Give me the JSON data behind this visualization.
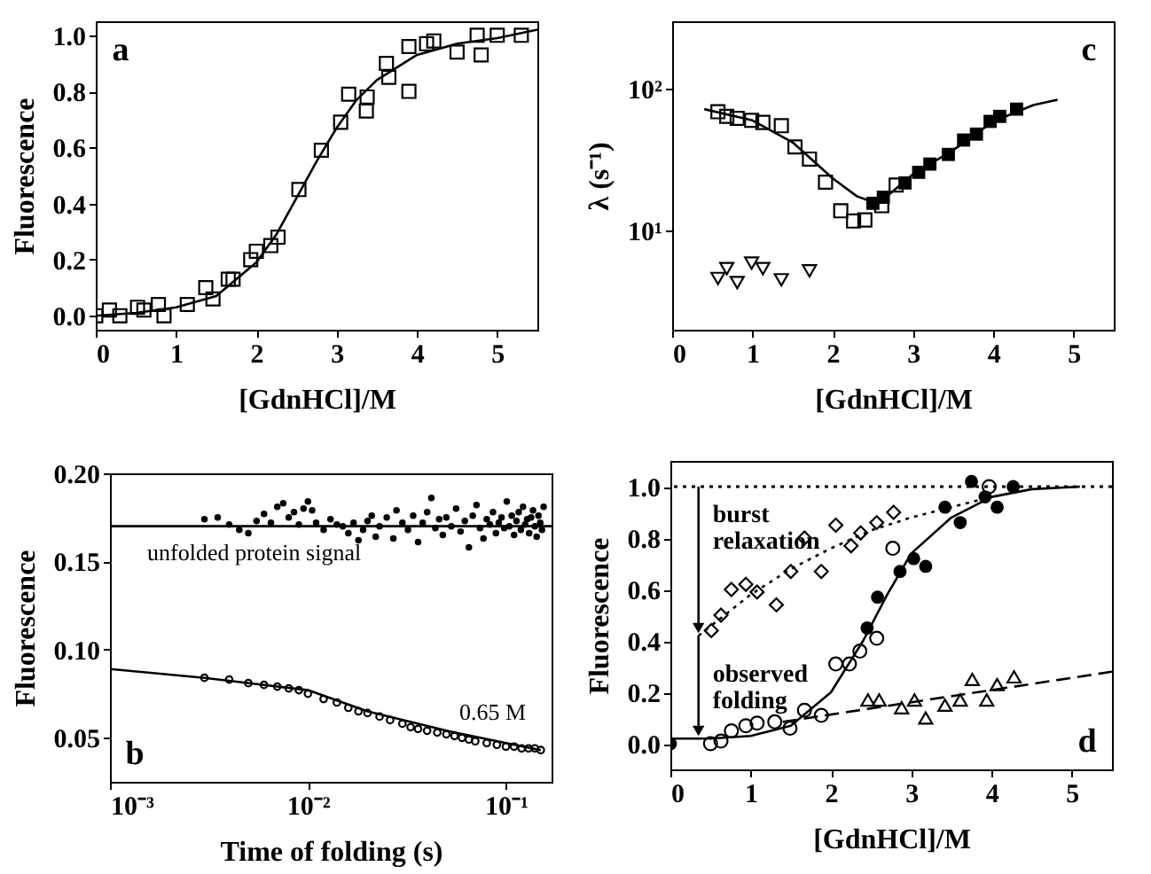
{
  "chart_data": [
    {
      "type": "scatter",
      "xlabel": "[GdnHCl]/M",
      "ylabel": "Fluorescence",
      "xlim": [
        0,
        5.5
      ],
      "ylim": [
        -0.05,
        1.05
      ],
      "xticks": [
        0,
        1,
        2,
        3,
        4,
        5
      ],
      "yticks": [
        {
          "value": 0,
          "label": "0.0"
        },
        {
          "value": 0.2,
          "label": "0.2"
        },
        {
          "value": 0.4,
          "label": "0.4"
        },
        {
          "value": 0.6,
          "label": "0.6"
        },
        {
          "value": 0.8,
          "label": "0.8"
        },
        {
          "value": 1,
          "label": "1.0"
        }
      ],
      "annotations": [
        "a"
      ],
      "series": [
        {
          "type": "scatter",
          "marker": "square",
          "color": "#000000",
          "x": [
            0,
            0.17,
            0.3,
            0.52,
            0.6,
            0.78,
            0.85,
            1.14,
            1.37,
            1.46,
            1.65,
            1.71,
            1.93,
            2.0,
            2.18,
            2.27,
            2.53,
            2.81,
            3.05,
            3.15,
            3.37,
            3.38,
            3.62,
            3.65,
            3.9,
            3.9,
            4.12,
            4.21,
            4.5,
            4.75,
            4.8,
            5.0,
            5.3
          ],
          "values": [
            0,
            0.02,
            0,
            0.03,
            0.02,
            0.04,
            0.0,
            0.04,
            0.1,
            0.06,
            0.13,
            0.13,
            0.2,
            0.23,
            0.25,
            0.28,
            0.45,
            0.59,
            0.69,
            0.79,
            0.73,
            0.78,
            0.9,
            0.85,
            0.8,
            0.96,
            0.97,
            0.98,
            0.94,
            1.0,
            0.93,
            1.0,
            1.0
          ]
        },
        {
          "type": "line",
          "color": "#000000",
          "line_style": "solid",
          "x": [
            0,
            0.5,
            1,
            1.5,
            2,
            2.25,
            2.5,
            2.75,
            3,
            3.25,
            3.5,
            4,
            4.5,
            5,
            5.5
          ],
          "values": [
            0.0,
            0.01,
            0.03,
            0.07,
            0.19,
            0.29,
            0.42,
            0.55,
            0.67,
            0.77,
            0.84,
            0.93,
            0.97,
            0.99,
            1.02
          ]
        }
      ]
    },
    {
      "type": "scatter",
      "xlabel": "[GdnHCl]/M",
      "ylabel": "λ (s⁻¹)",
      "log": "y",
      "xlim": [
        0,
        5.5
      ],
      "ylim": [
        2,
        300
      ],
      "xticks": [
        0,
        1,
        2,
        3,
        4,
        5
      ],
      "yticks": [
        {
          "value": 10,
          "label": "10¹"
        },
        {
          "value": 100,
          "label": "10²"
        }
      ],
      "annotations": [
        "c"
      ],
      "series": [
        {
          "type": "scatter",
          "marker": "square",
          "color": "#000000",
          "x": [
            0.57,
            0.68,
            0.81,
            0.99,
            1.13,
            1.36,
            1.53,
            1.71,
            1.91,
            2.1,
            2.26,
            2.4,
            2.61,
            2.79
          ],
          "values": [
            69,
            64,
            62,
            60,
            58,
            55,
            39,
            32,
            22,
            13.8,
            11.7,
            11.9,
            15,
            21
          ]
        },
        {
          "type": "scatter",
          "marker": "square",
          "color": "#000000",
          "x": [
            2.5,
            2.63,
            2.9,
            3.07,
            3.21,
            3.44,
            3.63,
            3.79,
            3.96,
            4.08,
            4.29
          ],
          "values": [
            15.6,
            17.2,
            21.7,
            25.8,
            29.5,
            34.5,
            43.6,
            48,
            59,
            64,
            72
          ]
        },
        {
          "type": "scatter",
          "marker": "triangle-down",
          "color": "#000000",
          "x": [
            0.57,
            0.68,
            0.81,
            0.99,
            1.13,
            1.36,
            1.71
          ],
          "values": [
            4.6,
            5.4,
            4.3,
            5.9,
            5.4,
            4.5,
            5.2
          ]
        },
        {
          "type": "line",
          "color": "#000000",
          "line_style": "solid",
          "x": [
            0.4,
            1.0,
            1.5,
            2.0,
            2.3,
            2.5,
            2.7,
            3.0,
            3.5,
            4.0,
            4.5,
            4.8
          ],
          "values": [
            72,
            60,
            42,
            23.4,
            17.5,
            15.9,
            18,
            25,
            37,
            59,
            77,
            84
          ]
        }
      ]
    },
    {
      "type": "scatter",
      "xlabel": "Time of folding (s)",
      "ylabel": "Fluorescence",
      "log": "x",
      "xlim": [
        0.001,
        0.17
      ],
      "ylim": [
        0.025,
        0.2
      ],
      "xticks": [
        {
          "value": 0.001,
          "label": "10⁻³"
        },
        {
          "value": 0.01,
          "label": "10⁻²"
        },
        {
          "value": 0.1,
          "label": "10⁻¹"
        }
      ],
      "yticks": [
        {
          "value": 0.05,
          "label": "0.05"
        },
        {
          "value": 0.1,
          "label": "0.10"
        },
        {
          "value": 0.15,
          "label": "0.15"
        },
        {
          "value": 0.2,
          "label": "0.20"
        }
      ],
      "annotations": [
        "b",
        "unfolded protein signal",
        "0.65 M"
      ],
      "series": [
        {
          "type": "scatter",
          "marker": "circle",
          "color": "#000000",
          "x": [
            0.003,
            0.0035,
            0.004,
            0.0045,
            0.005,
            0.0055,
            0.006,
            0.0065,
            0.007,
            0.0075,
            0.008,
            0.0085,
            0.009,
            0.0095,
            0.01,
            0.0105,
            0.011,
            0.012,
            0.013,
            0.014,
            0.015,
            0.016,
            0.017,
            0.018,
            0.019,
            0.02,
            0.021,
            0.022,
            0.023,
            0.025,
            0.027,
            0.028,
            0.03,
            0.032,
            0.034,
            0.036,
            0.038,
            0.04,
            0.042,
            0.044,
            0.046,
            0.048,
            0.05,
            0.053,
            0.056,
            0.059,
            0.062,
            0.065,
            0.068,
            0.071,
            0.074,
            0.077,
            0.08,
            0.083,
            0.086,
            0.089,
            0.092,
            0.095,
            0.098,
            0.101,
            0.104,
            0.107,
            0.11,
            0.113,
            0.116,
            0.119,
            0.122,
            0.125,
            0.128,
            0.131,
            0.134,
            0.137,
            0.14,
            0.143,
            0.146,
            0.149,
            0.152,
            0.155
          ],
          "values": [
            0.174,
            0.175,
            0.171,
            0.168,
            0.166,
            0.173,
            0.177,
            0.172,
            0.181,
            0.183,
            0.175,
            0.178,
            0.171,
            0.18,
            0.184,
            0.179,
            0.172,
            0.168,
            0.174,
            0.171,
            0.17,
            0.166,
            0.172,
            0.162,
            0.168,
            0.173,
            0.176,
            0.164,
            0.17,
            0.175,
            0.163,
            0.179,
            0.172,
            0.168,
            0.176,
            0.161,
            0.172,
            0.178,
            0.186,
            0.169,
            0.174,
            0.165,
            0.175,
            0.17,
            0.18,
            0.167,
            0.173,
            0.158,
            0.176,
            0.182,
            0.169,
            0.163,
            0.174,
            0.171,
            0.178,
            0.166,
            0.172,
            0.175,
            0.169,
            0.184,
            0.17,
            0.176,
            0.165,
            0.173,
            0.178,
            0.168,
            0.181,
            0.171,
            0.174,
            0.166,
            0.175,
            0.179,
            0.17,
            0.164,
            0.176,
            0.172,
            0.168,
            0.181
          ]
        },
        {
          "type": "line",
          "color": "#000000",
          "line_style": "solid",
          "x": [
            0.001,
            0.17
          ],
          "values": [
            0.17,
            0.17
          ]
        },
        {
          "type": "scatter",
          "marker": "circle",
          "color": "#000000",
          "x": [
            0.003,
            0.004,
            0.005,
            0.006,
            0.007,
            0.008,
            0.009,
            0.01,
            0.012,
            0.014,
            0.016,
            0.018,
            0.02,
            0.023,
            0.026,
            0.03,
            0.033,
            0.036,
            0.04,
            0.045,
            0.05,
            0.055,
            0.06,
            0.065,
            0.07,
            0.08,
            0.09,
            0.1,
            0.11,
            0.12,
            0.13,
            0.14,
            0.15
          ],
          "values": [
            0.084,
            0.083,
            0.081,
            0.08,
            0.079,
            0.078,
            0.077,
            0.075,
            0.072,
            0.07,
            0.067,
            0.065,
            0.064,
            0.062,
            0.06,
            0.058,
            0.056,
            0.055,
            0.054,
            0.053,
            0.052,
            0.051,
            0.05,
            0.049,
            0.048,
            0.047,
            0.046,
            0.045,
            0.045,
            0.044,
            0.044,
            0.044,
            0.043
          ]
        },
        {
          "type": "line",
          "color": "#000000",
          "line_style": "solid",
          "x": [
            0.001,
            0.003,
            0.01,
            0.02,
            0.05,
            0.1,
            0.15
          ],
          "values": [
            0.089,
            0.084,
            0.077,
            0.065,
            0.054,
            0.047,
            0.043
          ]
        }
      ]
    },
    {
      "type": "scatter",
      "xlabel": "[GdnHCl]/M",
      "ylabel": "Fluorescence",
      "xlim": [
        0,
        5.5
      ],
      "ylim": [
        -0.1,
        1.1
      ],
      "xticks": [
        0,
        1,
        2,
        3,
        4,
        5
      ],
      "yticks": [
        {
          "value": 0,
          "label": "0.0"
        },
        {
          "value": 0.2,
          "label": "0.2"
        },
        {
          "value": 0.4,
          "label": "0.4"
        },
        {
          "value": 0.6,
          "label": "0.6"
        },
        {
          "value": 0.8,
          "label": "0.8"
        },
        {
          "value": 1,
          "label": "1.0"
        }
      ],
      "ref_lines": [
        {
          "axis": "y",
          "value": 1.0,
          "line_style": "dotted"
        }
      ],
      "annotations": [
        "d",
        {
          "text": "burst\nrelaxation",
          "x": 0.35,
          "y": 0.42
        },
        {
          "text": "observed\nfolding",
          "x": 0.35,
          "y": 0.02
        }
      ],
      "series": [
        {
          "type": "line",
          "color": "#000000",
          "line_style": "solid",
          "x": [
            0,
            0.5,
            1.0,
            1.5,
            2.0,
            2.4,
            2.7,
            3.0,
            3.5,
            4.0,
            4.5,
            5.1
          ],
          "values": [
            0.02,
            0.02,
            0.03,
            0.07,
            0.2,
            0.4,
            0.58,
            0.74,
            0.88,
            0.96,
            0.99,
            1.0
          ]
        },
        {
          "type": "line",
          "color": "#000000",
          "line_style": "dotted",
          "x": [
            0.35,
            1.0,
            1.5,
            2.0,
            2.5,
            3.0,
            3.5,
            4.0
          ],
          "values": [
            0.42,
            0.58,
            0.68,
            0.76,
            0.83,
            0.88,
            0.92,
            0.96
          ]
        },
        {
          "type": "line",
          "color": "#000000",
          "line_style": "dashed",
          "x": [
            1.4,
            5.5
          ],
          "values": [
            0.085,
            0.28
          ]
        },
        {
          "type": "scatter",
          "marker": "circle",
          "color": "#000000",
          "x": [
            0,
            2.45,
            2.58,
            2.86,
            3.03,
            3.18,
            3.42,
            3.61,
            3.75,
            3.92,
            4.07,
            4.27
          ],
          "values": [
            0.0,
            0.45,
            0.57,
            0.67,
            0.72,
            0.69,
            0.92,
            0.86,
            1.02,
            0.96,
            0.92,
            1.0
          ]
        },
        {
          "type": "scatter",
          "marker": "circle",
          "color": "#000000",
          "x": [
            0.5,
            0.63,
            0.76,
            0.94,
            1.08,
            1.3,
            1.49,
            1.67,
            1.88,
            2.06,
            2.23,
            2.36,
            2.57,
            2.77,
            3.97
          ],
          "values": [
            0.0,
            0.01,
            0.05,
            0.07,
            0.08,
            0.085,
            0.06,
            0.13,
            0.11,
            0.31,
            0.31,
            0.36,
            0.41,
            0.76,
            1.0
          ]
        },
        {
          "type": "scatter",
          "marker": "diamond",
          "color": "#000000",
          "x": [
            0.51,
            0.63,
            0.76,
            0.94,
            1.08,
            1.32,
            1.5,
            1.67,
            1.88,
            2.06,
            2.25,
            2.37,
            2.57,
            2.78
          ],
          "values": [
            0.44,
            0.5,
            0.6,
            0.62,
            0.59,
            0.54,
            0.67,
            0.8,
            0.67,
            0.85,
            0.77,
            0.82,
            0.86,
            0.9
          ]
        },
        {
          "type": "scatter",
          "marker": "triangle",
          "color": "#000000",
          "x": [
            2.46,
            2.6,
            2.88,
            3.04,
            3.18,
            3.42,
            3.61,
            3.76,
            3.94,
            4.07,
            4.28
          ],
          "values": [
            0.17,
            0.17,
            0.14,
            0.17,
            0.1,
            0.15,
            0.17,
            0.25,
            0.17,
            0.23,
            0.26
          ]
        }
      ]
    }
  ]
}
